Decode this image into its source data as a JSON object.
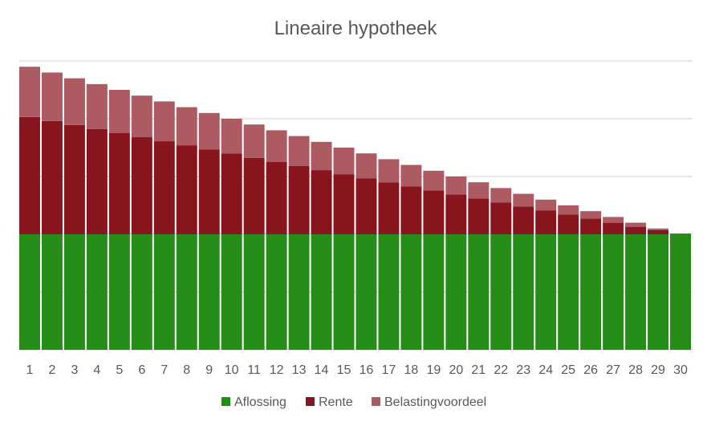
{
  "chart_data": {
    "type": "bar",
    "stacked": true,
    "title": "Lineaire hypotheek",
    "xlabel": "",
    "ylabel": "",
    "ylim": [
      0,
      5
    ],
    "gridlines": true,
    "y_tick_labels_shown": false,
    "legend_position": "bottom",
    "categories": [
      "1",
      "2",
      "3",
      "4",
      "5",
      "6",
      "7",
      "8",
      "9",
      "10",
      "11",
      "12",
      "13",
      "14",
      "15",
      "16",
      "17",
      "18",
      "19",
      "20",
      "21",
      "22",
      "23",
      "24",
      "25",
      "26",
      "27",
      "28",
      "29",
      "30"
    ],
    "series": [
      {
        "name": "Aflossing",
        "color": "#258C17",
        "values": [
          2,
          2,
          2,
          2,
          2,
          2,
          2,
          2,
          2,
          2,
          2,
          2,
          2,
          2,
          2,
          2,
          2,
          2,
          2,
          2,
          2,
          2,
          2,
          2,
          2,
          2,
          2,
          2,
          2,
          2
        ]
      },
      {
        "name": "Rente",
        "color": "#88141E",
        "values": [
          2.03,
          1.96,
          1.89,
          1.82,
          1.75,
          1.68,
          1.61,
          1.54,
          1.47,
          1.4,
          1.32,
          1.25,
          1.18,
          1.11,
          1.04,
          0.97,
          0.9,
          0.83,
          0.76,
          0.69,
          0.62,
          0.55,
          0.48,
          0.41,
          0.34,
          0.27,
          0.2,
          0.13,
          0.07,
          0.01
        ]
      },
      {
        "name": "Belastingvoordeel",
        "color": "#AD5B62",
        "values": [
          0.87,
          0.84,
          0.81,
          0.78,
          0.75,
          0.72,
          0.69,
          0.66,
          0.63,
          0.6,
          0.58,
          0.55,
          0.52,
          0.49,
          0.46,
          0.43,
          0.4,
          0.37,
          0.34,
          0.31,
          0.28,
          0.25,
          0.22,
          0.19,
          0.16,
          0.13,
          0.1,
          0.07,
          0.03,
          0.0
        ]
      }
    ]
  },
  "colors": {
    "gridline": "#D9D9D9",
    "text": "#595959",
    "bar_separator": "#ffffff"
  }
}
